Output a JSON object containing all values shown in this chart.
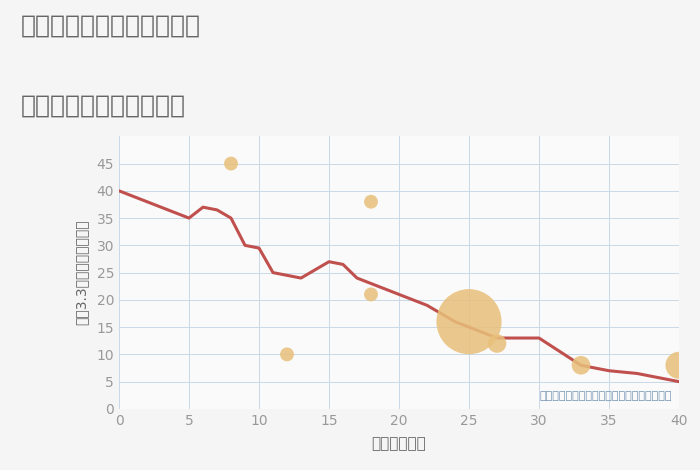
{
  "title_line1": "三重県桑名市多度町香取の",
  "title_line2": "築年数別中古戸建て価格",
  "xlabel": "築年数（年）",
  "ylabel": "坪（3.3㎡）単価（万円）",
  "annotation": "円の大きさは、取引のあった物件面積を示す",
  "xlim": [
    0,
    40
  ],
  "ylim": [
    0,
    50
  ],
  "xticks": [
    0,
    5,
    10,
    15,
    20,
    25,
    30,
    35,
    40
  ],
  "yticks": [
    0,
    5,
    10,
    15,
    20,
    25,
    30,
    35,
    40,
    45
  ],
  "line_x": [
    0,
    5,
    6,
    7,
    8,
    9,
    10,
    11,
    13,
    15,
    16,
    17,
    18,
    20,
    22,
    24,
    25,
    27,
    30,
    33,
    35,
    37,
    40
  ],
  "line_y": [
    40,
    35,
    37,
    36.5,
    35,
    30,
    29.5,
    25,
    24,
    27,
    26.5,
    24,
    23,
    21,
    19,
    16,
    15,
    13,
    13,
    8,
    7,
    6.5,
    5
  ],
  "scatter_x": [
    8,
    12,
    18,
    18,
    25,
    27,
    33,
    40
  ],
  "scatter_y": [
    45,
    10,
    21,
    38,
    16,
    12,
    8,
    8
  ],
  "scatter_sizes": [
    100,
    100,
    100,
    100,
    2200,
    180,
    180,
    380
  ],
  "scatter_color": "#E8C07A",
  "line_color": "#C0504D",
  "background_color": "#F5F5F5",
  "plot_background": "#FAFAFA",
  "grid_color": "#C8D8E8",
  "title_color": "#666666",
  "xlabel_color": "#666666",
  "ylabel_color": "#666666",
  "annotation_color": "#7090B0",
  "tick_color": "#999999",
  "title_fontsize": 18,
  "label_fontsize": 11,
  "tick_fontsize": 10,
  "annot_fontsize": 8
}
